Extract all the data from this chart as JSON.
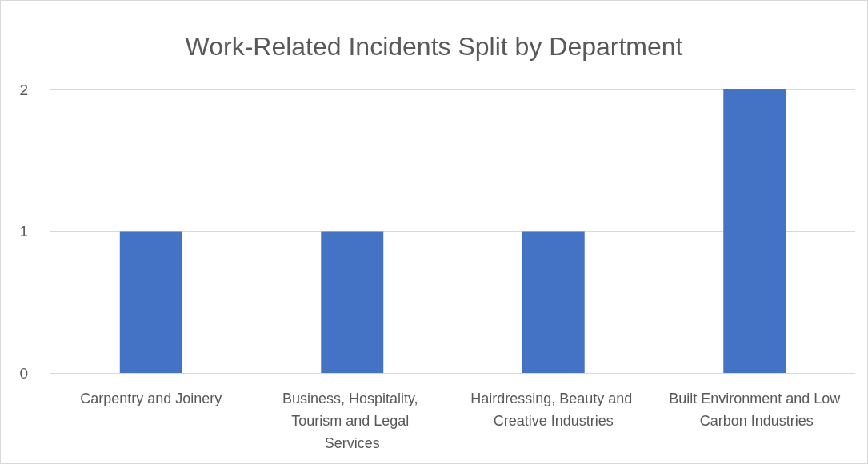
{
  "chart_data": {
    "type": "bar",
    "title": "Work-Related Incidents Split by Department",
    "categories": [
      "Carpentry and Joinery",
      "Business, Hospitality, Tourism and Legal Services",
      "Hairdressing, Beauty and Creative Industries",
      "Built Environment and Low Carbon Industries"
    ],
    "values": [
      1,
      1,
      1,
      2
    ],
    "color": "#4472c4",
    "ylim": [
      0,
      2
    ],
    "yticks": [
      0,
      1,
      2
    ],
    "grid": "y"
  }
}
